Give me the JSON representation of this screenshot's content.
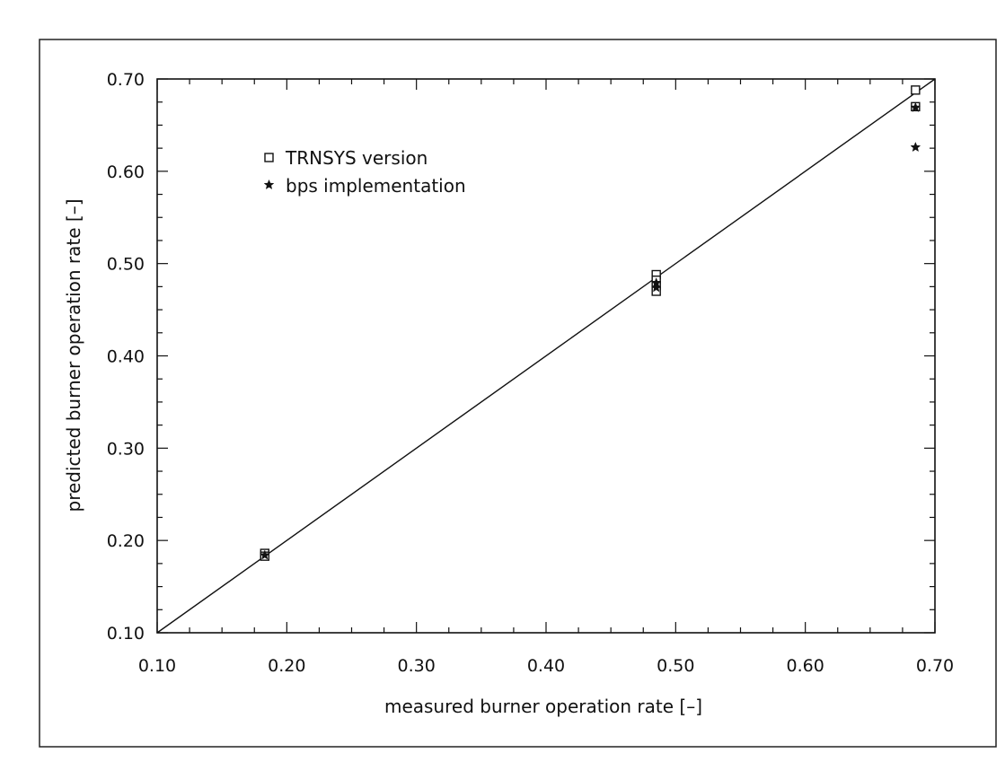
{
  "chart_data": {
    "type": "scatter",
    "xlabel": "measured burner operation rate [–]",
    "ylabel": "predicted burner operation rate [–]",
    "xlim": [
      0.1,
      0.7
    ],
    "ylim": [
      0.1,
      0.7
    ],
    "x_ticks": [
      "0.10",
      "0.20",
      "0.30",
      "0.40",
      "0.50",
      "0.60",
      "0.70"
    ],
    "y_ticks": [
      "0.10",
      "0.20",
      "0.30",
      "0.40",
      "0.50",
      "0.60",
      "0.70"
    ],
    "reference_line": {
      "from": [
        0.1,
        0.1
      ],
      "to": [
        0.7,
        0.7
      ]
    },
    "legend_position": "top-left",
    "series": [
      {
        "name": "TRNSYS version",
        "marker": "square",
        "points": [
          {
            "x": 0.183,
            "y": 0.186
          },
          {
            "x": 0.183,
            "y": 0.183
          },
          {
            "x": 0.485,
            "y": 0.488
          },
          {
            "x": 0.485,
            "y": 0.482
          },
          {
            "x": 0.485,
            "y": 0.476
          },
          {
            "x": 0.485,
            "y": 0.47
          },
          {
            "x": 0.685,
            "y": 0.688
          },
          {
            "x": 0.685,
            "y": 0.67
          }
        ]
      },
      {
        "name": "bps implementation",
        "marker": "star",
        "points": [
          {
            "x": 0.183,
            "y": 0.184
          },
          {
            "x": 0.485,
            "y": 0.479
          },
          {
            "x": 0.485,
            "y": 0.474
          },
          {
            "x": 0.685,
            "y": 0.669
          },
          {
            "x": 0.685,
            "y": 0.626
          }
        ]
      }
    ]
  }
}
